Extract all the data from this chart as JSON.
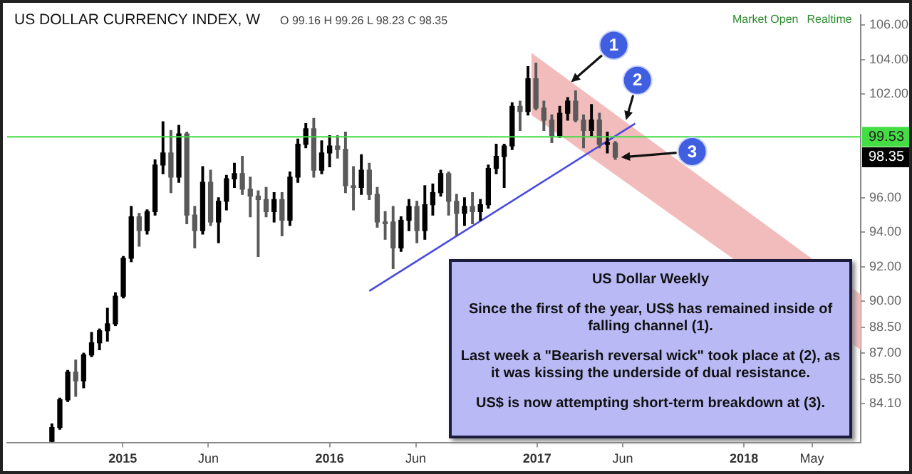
{
  "chart_data": {
    "type": "candlestick",
    "title": "US DOLLAR CURRENCY INDEX, W",
    "subtitle": "O 99.16 H 99.26 L 98.23 C 98.35",
    "colors": [
      "#000000",
      "#000000",
      "#000000",
      "#5a5a5a",
      "#000000",
      "#000000",
      "#000000",
      "#000000",
      "#000000",
      "#000000",
      "#000000",
      "#5a5a5a",
      "#000000",
      "#000000",
      "#000000",
      "#5a5a5a",
      "#000000",
      "#5a5a5a",
      "#5a5a5a",
      "#000000",
      "#5a5a5a",
      "#000000",
      "#000000",
      "#000000",
      "#5a5a5a",
      "#5a5a5a",
      "#5a5a5a",
      "#5a5a5a",
      "#000000",
      "#5a5a5a",
      "#000000",
      "#000000",
      "#000000",
      "#5a5a5a",
      "#000000",
      "#000000",
      "#5a5a5a",
      "#5a5a5a",
      "#5a5a5a",
      "#000000",
      "#5a5a5a",
      "#5a5a5a",
      "#5a5a5a",
      "#5a5a5a",
      "#000000",
      "#000000",
      "#5a5a5a",
      "#000000",
      "#000000",
      "#000000",
      "#5a5a5a",
      "#5a5a5a",
      "#000000",
      "#5a5a5a",
      "#000000",
      "#000000",
      "#000000",
      "#000000",
      "#000000",
      "#5a5a5a",
      "#000000",
      "#5a5a5a",
      "#5a5a5a",
      "#5a5a5a",
      "#000000",
      "#000000",
      "#5a5a5a",
      "#5a5a5a",
      "#000000",
      "#5a5a5a",
      "#000000",
      "#5a5a5a"
    ],
    "x": [
      "2014-08-29",
      "2014-09-12",
      "2014-09-26",
      "2014-10-10",
      "2014-10-24",
      "2014-11-07",
      "2014-11-21",
      "2014-12-05",
      "2014-12-19",
      "2015-01-02",
      "2015-01-16",
      "2015-01-30",
      "2015-02-13",
      "2015-02-27",
      "2015-03-13",
      "2015-03-27",
      "2015-04-10",
      "2015-04-24",
      "2015-05-08",
      "2015-05-22",
      "2015-06-05",
      "2015-06-19",
      "2015-07-03",
      "2015-07-17",
      "2015-07-31",
      "2015-08-14",
      "2015-08-28",
      "2015-09-11",
      "2015-09-25",
      "2015-10-09",
      "2015-10-23",
      "2015-11-06",
      "2015-11-20",
      "2015-12-04",
      "2015-12-18",
      "2016-01-01",
      "2016-01-15",
      "2016-01-29",
      "2016-02-12",
      "2016-02-26",
      "2016-03-11",
      "2016-03-25",
      "2016-04-08",
      "2016-04-22",
      "2016-05-06",
      "2016-05-20",
      "2016-06-03",
      "2016-06-17",
      "2016-07-01",
      "2016-07-15",
      "2016-07-29",
      "2016-08-12",
      "2016-08-26",
      "2016-09-09",
      "2016-09-23",
      "2016-10-07",
      "2016-10-21",
      "2016-11-04",
      "2016-11-18",
      "2016-12-02",
      "2016-12-16",
      "2016-12-30",
      "2017-01-13",
      "2017-01-27",
      "2017-02-10",
      "2017-02-24",
      "2017-03-10",
      "2017-03-24",
      "2017-04-07",
      "2017-04-21",
      "2017-05-05",
      "2017-05-19"
    ],
    "ohlc": [
      [
        81.9,
        82.9,
        81.9,
        82.7
      ],
      [
        82.7,
        84.4,
        82.6,
        84.3
      ],
      [
        84.3,
        86.0,
        84.2,
        85.9
      ],
      [
        85.9,
        86.6,
        84.5,
        85.4
      ],
      [
        85.4,
        87.0,
        85.0,
        86.9
      ],
      [
        86.9,
        88.2,
        86.8,
        87.6
      ],
      [
        87.6,
        88.4,
        87.2,
        88.3
      ],
      [
        88.3,
        89.6,
        87.7,
        88.7
      ],
      [
        88.7,
        90.5,
        88.6,
        90.3
      ],
      [
        90.3,
        92.6,
        90.2,
        92.5
      ],
      [
        92.5,
        95.5,
        92.3,
        94.9
      ],
      [
        94.9,
        95.1,
        93.2,
        94.1
      ],
      [
        94.1,
        95.3,
        93.9,
        95.2
      ],
      [
        95.2,
        98.2,
        95.0,
        97.9
      ],
      [
        97.9,
        100.4,
        97.4,
        98.6
      ],
      [
        98.6,
        99.9,
        96.3,
        97.2
      ],
      [
        97.2,
        100.2,
        96.9,
        99.7
      ],
      [
        99.7,
        99.8,
        94.5,
        95.0
      ],
      [
        95.0,
        95.5,
        93.1,
        94.1
      ],
      [
        94.1,
        97.8,
        93.9,
        96.9
      ],
      [
        96.9,
        97.6,
        94.4,
        94.6
      ],
      [
        94.6,
        96.0,
        93.4,
        95.8
      ],
      [
        95.8,
        97.3,
        95.3,
        97.1
      ],
      [
        97.1,
        98.0,
        96.6,
        97.4
      ],
      [
        97.4,
        98.4,
        96.2,
        96.5
      ],
      [
        96.5,
        97.2,
        94.9,
        96.1
      ],
      [
        96.1,
        96.4,
        92.6,
        95.9
      ],
      [
        95.9,
        96.6,
        94.9,
        95.2
      ],
      [
        95.2,
        96.3,
        94.6,
        95.9
      ],
      [
        95.9,
        96.3,
        93.8,
        94.7
      ],
      [
        94.7,
        97.5,
        94.4,
        97.2
      ],
      [
        97.2,
        99.4,
        96.9,
        99.1
      ],
      [
        99.1,
        100.3,
        98.9,
        100.0
      ],
      [
        100.0,
        100.6,
        97.2,
        97.6
      ],
      [
        97.6,
        99.3,
        97.4,
        98.6
      ],
      [
        98.6,
        99.6,
        97.8,
        99.0
      ],
      [
        99.0,
        99.6,
        98.3,
        98.8
      ],
      [
        98.8,
        99.8,
        96.3,
        96.7
      ],
      [
        96.7,
        97.8,
        95.3,
        96.6
      ],
      [
        96.6,
        98.5,
        96.2,
        97.6
      ],
      [
        97.6,
        98.0,
        95.9,
        96.2
      ],
      [
        96.2,
        96.6,
        94.3,
        94.6
      ],
      [
        94.6,
        95.2,
        93.6,
        94.5
      ],
      [
        94.6,
        95.5,
        91.9,
        93.1
      ],
      [
        93.1,
        94.9,
        92.9,
        94.7
      ],
      [
        94.7,
        95.9,
        94.1,
        95.5
      ],
      [
        95.5,
        95.8,
        93.4,
        94.1
      ],
      [
        94.1,
        96.7,
        93.6,
        95.6
      ],
      [
        95.6,
        96.8,
        95.0,
        96.3
      ],
      [
        96.3,
        97.6,
        96.1,
        97.4
      ],
      [
        97.4,
        97.5,
        95.0,
        95.8
      ],
      [
        95.8,
        96.2,
        93.8,
        95.1
      ],
      [
        95.1,
        96.0,
        94.4,
        95.5
      ],
      [
        95.5,
        96.3,
        94.5,
        95.2
      ],
      [
        95.2,
        95.9,
        94.7,
        95.6
      ],
      [
        95.6,
        97.9,
        95.4,
        97.7
      ],
      [
        97.7,
        99.1,
        97.4,
        98.4
      ],
      [
        98.4,
        99.1,
        96.6,
        99.0
      ],
      [
        99.0,
        101.5,
        98.8,
        101.3
      ],
      [
        101.3,
        101.6,
        99.9,
        101.0
      ],
      [
        101.0,
        103.6,
        100.8,
        102.9
      ],
      [
        102.9,
        103.8,
        101.1,
        101.2
      ],
      [
        101.2,
        101.6,
        99.9,
        100.5
      ],
      [
        100.5,
        100.8,
        99.2,
        99.6
      ],
      [
        99.6,
        101.3,
        99.5,
        100.9
      ],
      [
        100.9,
        101.8,
        100.5,
        101.6
      ],
      [
        101.6,
        102.2,
        100.4,
        100.5
      ],
      [
        100.5,
        100.8,
        98.9,
        99.9
      ],
      [
        99.9,
        101.4,
        99.6,
        100.5
      ],
      [
        100.5,
        100.9,
        98.9,
        99.1
      ],
      [
        99.1,
        99.8,
        98.6,
        99.2
      ],
      [
        99.16,
        99.26,
        98.23,
        98.35
      ]
    ],
    "series": [
      {
        "type": "line",
        "color": "#f2bcbc",
        "x": [
          "2016-12-22",
          "2018-07-26"
        ],
        "values": [
          null,
          null
        ],
        "lower": [
          100.8,
          87.2
        ],
        "upper": [
          104.4,
          90.4
        ]
      },
      {
        "type": "line",
        "color": "#4a4ae0",
        "x": [
          "2016-03-11",
          "2017-06-23"
        ],
        "values": [
          90.6,
          100.3
        ]
      }
    ],
    "ref_lines": [
      {
        "axis": "y",
        "value": 99.53,
        "label": "99.53",
        "color": "#44dd44"
      }
    ],
    "annotations": [
      "Market Open",
      "Realtime",
      "US Dollar Weekly",
      "Since the first of the year, US$ has remained inside of falling channel (1).",
      "Last week a \"Bearish reversal wick\" took place at (2), as it was kissing the underside of dual resistance.",
      "US$ is now attempting short-term breakdown at (3).",
      {
        "text": "1",
        "x": "2017-03-02",
        "y": 102.7
      },
      {
        "text": "2",
        "x": "2017-06-07",
        "y": 100.5
      },
      {
        "text": "3",
        "x": "2017-05-19",
        "y": 98.35
      },
      "98.35"
    ],
    "xlim": [
      "2014-06-11",
      "2018-07-26"
    ],
    "xticks": [
      {
        "value": "2015-01-01",
        "label": "2015"
      },
      {
        "value": "2015-06-01",
        "label": "Jun"
      },
      {
        "value": "2016-01-01",
        "label": "2016"
      },
      {
        "value": "2016-06-01",
        "label": "Jun"
      },
      {
        "value": "2017-01-01",
        "label": "2017"
      },
      {
        "value": "2017-06-01",
        "label": "Jun"
      },
      {
        "value": "2018-01-01",
        "label": "2018"
      },
      {
        "value": "2018-05-01",
        "label": "May"
      }
    ],
    "ylim": [
      81.8,
      106.6
    ],
    "yticks": [
      {
        "value": 84.1,
        "label": "84.10"
      },
      {
        "value": 85.5,
        "label": "85.50"
      },
      {
        "value": 87,
        "label": "87.00"
      },
      {
        "value": 88.5,
        "label": "88.50"
      },
      {
        "value": 90,
        "label": "90.00"
      },
      {
        "value": 92,
        "label": "92.00"
      },
      {
        "value": 94,
        "label": "94.00"
      },
      {
        "value": 96,
        "label": "96.00"
      },
      {
        "value": 102,
        "label": "102.00"
      },
      {
        "value": 104,
        "label": "104.00"
      },
      {
        "value": 106,
        "label": "106.00"
      }
    ]
  }
}
